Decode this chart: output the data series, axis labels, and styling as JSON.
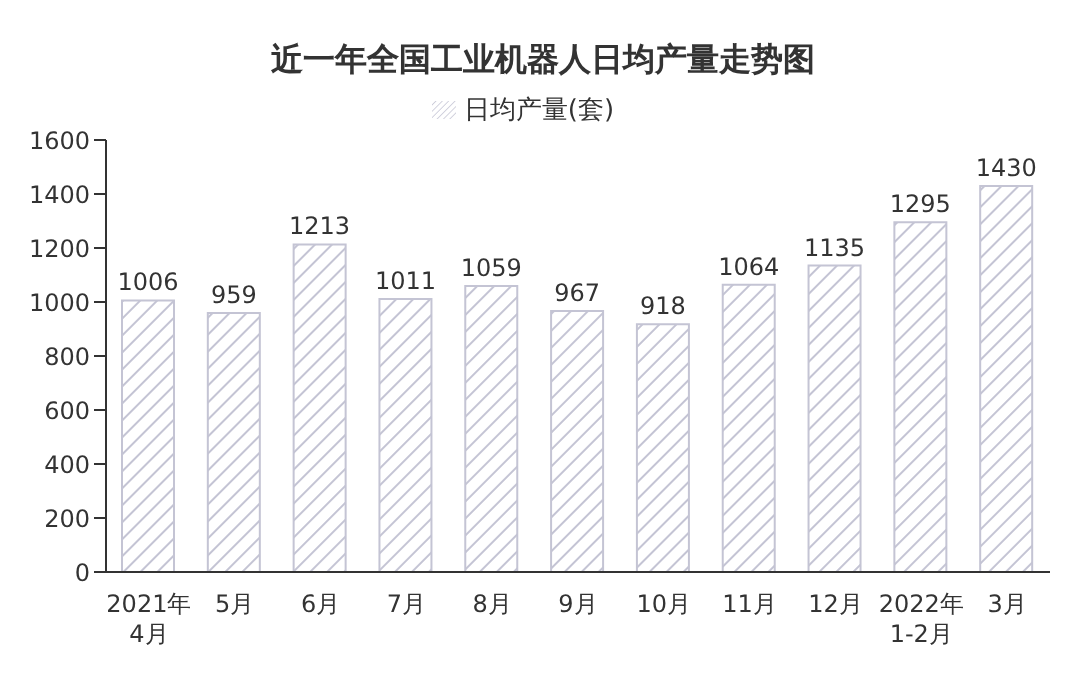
{
  "chart_data": {
    "type": "bar",
    "title": "近一年全国工业机器人日均产量走势图",
    "categories": [
      "2021年\n4月",
      "5月",
      "6月",
      "7月",
      "8月",
      "9月",
      "10月",
      "11月",
      "12月",
      "2022年\n1-2月",
      "3月"
    ],
    "series": [
      {
        "name": "日均产量(套)",
        "color": "#c4c4d4",
        "values": [
          1006,
          959,
          1213,
          1011,
          1059,
          967,
          918,
          1064,
          1135,
          1295,
          1430
        ]
      }
    ],
    "ylim": [
      0,
      1600
    ],
    "yticks": [
      0,
      200,
      400,
      600,
      800,
      1000,
      1200,
      1400,
      1600
    ],
    "data_labels": true,
    "legend": "top",
    "grid": false
  }
}
